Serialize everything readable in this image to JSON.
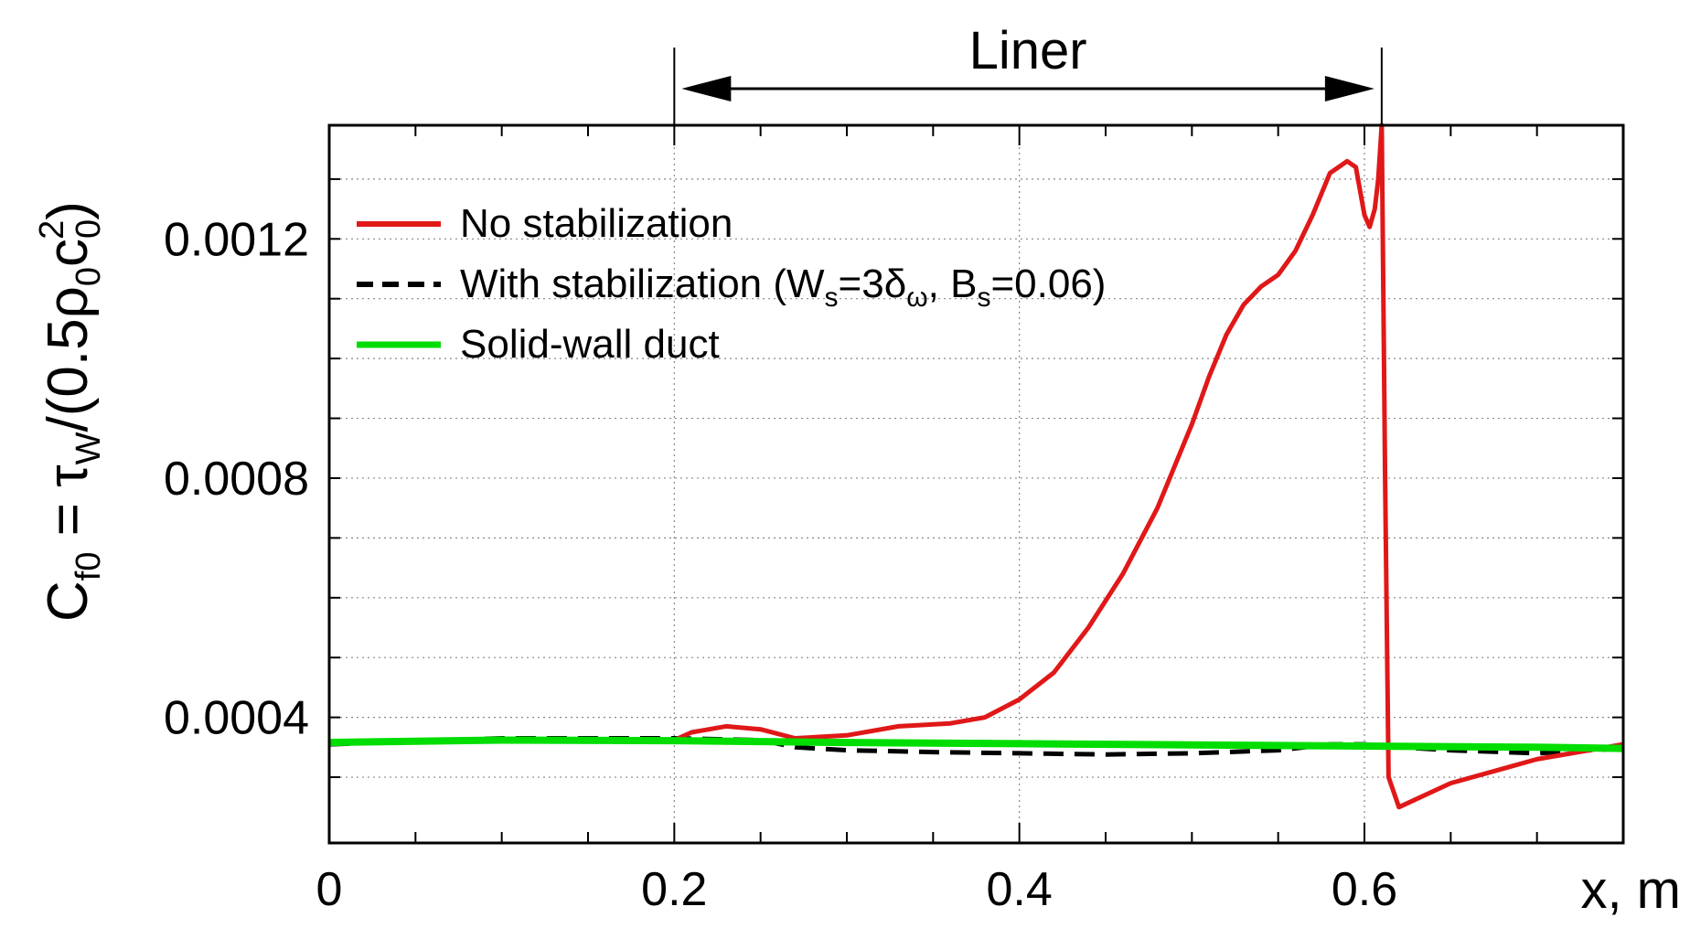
{
  "chart_data": {
    "type": "line",
    "title": "",
    "xlabel": "x, m",
    "ylabel_parts": {
      "C": "C",
      "sub_f0": "f0",
      "eq_tau": " = τ",
      "sub_w": "W",
      "frac_open": "/(0.5ρ",
      "sub_0a": "0",
      "c": "c",
      "sub_0b": "0",
      "sup_2": "2",
      "close": ")"
    },
    "xlim": [
      0,
      0.75
    ],
    "ylim": [
      0.00019,
      0.00139
    ],
    "x_ticks": [
      0,
      0.2,
      0.4,
      0.6
    ],
    "x_tick_labels": [
      "0",
      "0.2",
      "0.4",
      "0.6"
    ],
    "y_ticks": [
      0.0004,
      0.0008,
      0.0012
    ],
    "y_tick_labels": [
      "0.0004",
      "0.0008",
      "0.0012"
    ],
    "grid": true,
    "legend_position": "top-left",
    "annotation": {
      "text": "Liner",
      "x_start": 0.2,
      "x_end": 0.61
    },
    "legend": {
      "no_stab": "No stabilization",
      "with_stab_prefix": "With stabilization (W",
      "with_stab_sub_s1": "s",
      "with_stab_mid1": "=3δ",
      "with_stab_sub_omega": "ω",
      "with_stab_mid2": ", B",
      "with_stab_sub_s2": "s",
      "with_stab_suffix": "=0.06)",
      "solid": "Solid-wall duct"
    },
    "series": [
      {
        "id": "no_stab",
        "color": "#e01818",
        "style": "solid",
        "x": [
          0,
          0.1,
          0.2,
          0.21,
          0.23,
          0.25,
          0.27,
          0.3,
          0.33,
          0.36,
          0.38,
          0.4,
          0.42,
          0.44,
          0.46,
          0.48,
          0.5,
          0.51,
          0.52,
          0.53,
          0.54,
          0.55,
          0.56,
          0.57,
          0.58,
          0.59,
          0.595,
          0.6,
          0.603,
          0.606,
          0.608,
          0.61,
          0.612,
          0.614,
          0.62,
          0.65,
          0.7,
          0.75
        ],
        "y": [
          0.000358,
          0.000362,
          0.000362,
          0.000375,
          0.000385,
          0.00038,
          0.000365,
          0.00037,
          0.000385,
          0.00039,
          0.0004,
          0.00043,
          0.000475,
          0.00055,
          0.00064,
          0.00075,
          0.00089,
          0.00097,
          0.00104,
          0.00109,
          0.00112,
          0.00114,
          0.00118,
          0.00124,
          0.00131,
          0.00133,
          0.00132,
          0.00124,
          0.00122,
          0.00125,
          0.0013,
          0.00139,
          0.0008,
          0.0003,
          0.00025,
          0.00029,
          0.00033,
          0.000355
        ]
      },
      {
        "id": "with_stab",
        "color": "#000000",
        "style": "dashed",
        "x": [
          0,
          0.1,
          0.2,
          0.25,
          0.27,
          0.3,
          0.35,
          0.4,
          0.45,
          0.5,
          0.55,
          0.58,
          0.6,
          0.62,
          0.65,
          0.7,
          0.75
        ],
        "y": [
          0.000355,
          0.000365,
          0.000365,
          0.000362,
          0.00035,
          0.000345,
          0.000342,
          0.00034,
          0.000338,
          0.00034,
          0.000345,
          0.000355,
          0.000355,
          0.00035,
          0.000345,
          0.00034,
          0.000348
        ]
      },
      {
        "id": "solid",
        "color": "#00dd00",
        "style": "solid",
        "x": [
          0,
          0.1,
          0.2,
          0.3,
          0.4,
          0.5,
          0.6,
          0.7,
          0.75
        ],
        "y": [
          0.000358,
          0.000362,
          0.000361,
          0.000358,
          0.000356,
          0.000354,
          0.000352,
          0.00035,
          0.000348
        ]
      }
    ]
  }
}
